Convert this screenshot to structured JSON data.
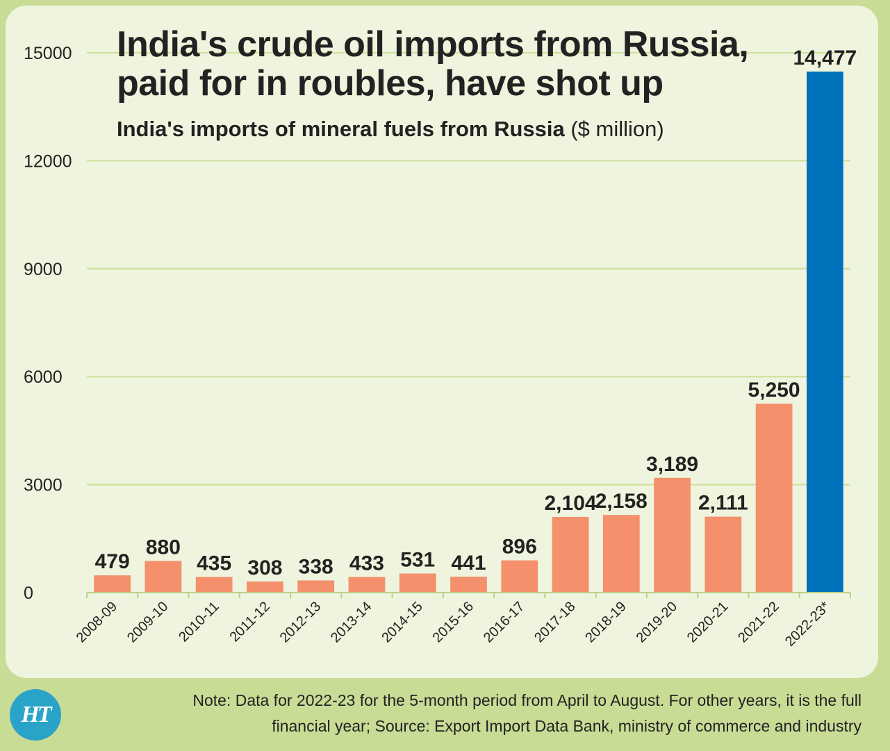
{
  "chart_data": {
    "type": "bar",
    "title": "India's crude oil imports from Russia, paid for in roubles, have shot up",
    "subtitle_main": "India's imports of mineral fuels from Russia",
    "subtitle_unit": "($ million)",
    "xlabel": "",
    "ylabel": "",
    "ylim": [
      0,
      15000
    ],
    "yticks": [
      0,
      3000,
      6000,
      9000,
      12000,
      15000
    ],
    "grid": true,
    "categories": [
      "2008-09",
      "2009-10",
      "2010-11",
      "2011-12",
      "2012-13",
      "2013-14",
      "2014-15",
      "2015-16",
      "2016-17",
      "2017-18",
      "2018-19",
      "2019-20",
      "2020-21",
      "2021-22",
      "2022-23*"
    ],
    "values": [
      479,
      880,
      435,
      308,
      338,
      433,
      531,
      441,
      896,
      2104,
      2158,
      3189,
      2111,
      5250,
      14477
    ],
    "data_labels": [
      "479",
      "880",
      "435",
      "308",
      "338",
      "433",
      "531",
      "441",
      "896",
      "2,104",
      "2,158",
      "3,189",
      "2,111",
      "5,250",
      "14,477"
    ],
    "colors": {
      "default_bar": "#f4906c",
      "highlight_bar": "#0071bb",
      "gridline": "#cddf9a",
      "panel": "#eef4dd",
      "background": "#c9dc96"
    },
    "highlight_index": 14
  },
  "footer": {
    "logo_text": "HT",
    "note": "Note: Data for 2022-23 for the 5-month period from April to August. For other years, it is the full financial year; Source: Export Import Data Bank, ministry of commerce and industry"
  }
}
